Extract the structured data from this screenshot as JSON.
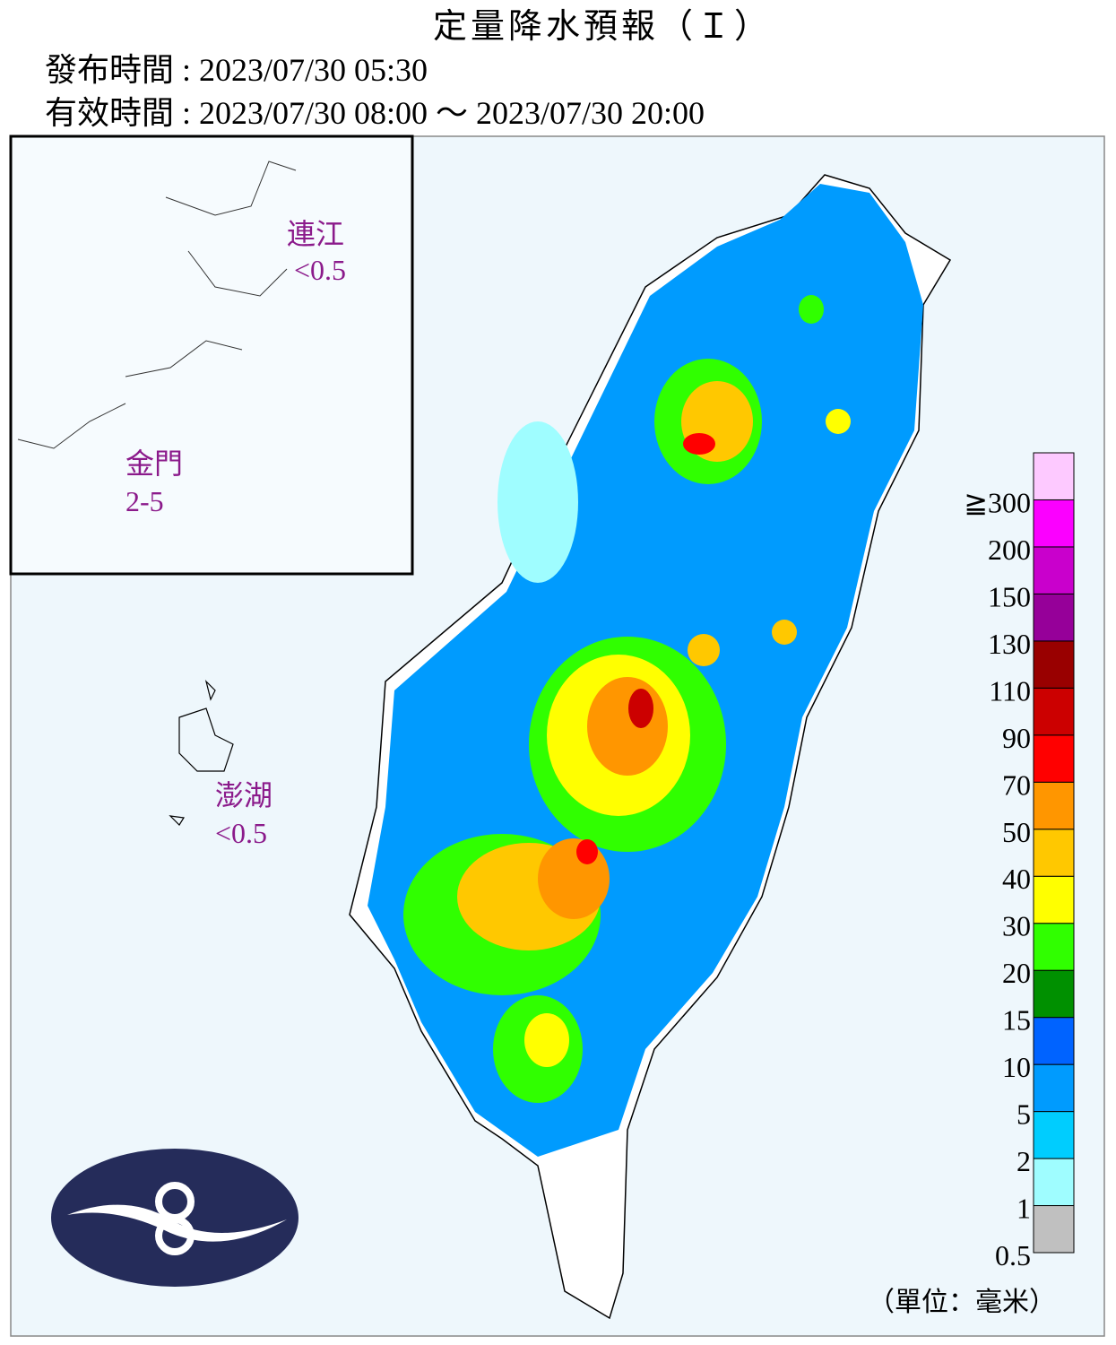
{
  "header": {
    "title": "定量降水預報（Ｉ）",
    "issued": "發布時間 : 2023/07/30 05:30",
    "valid": "有效時間 : 2023/07/30 08:00 ～ 2023/07/30 20:00"
  },
  "islands": [
    {
      "name": "連江",
      "value": "<0.5"
    },
    {
      "name": "金門",
      "value": "2-5"
    },
    {
      "name": "澎湖",
      "value": "<0.5"
    }
  ],
  "legend": {
    "unit": "（單位：毫米）",
    "levels": [
      {
        "label": "0.5",
        "color": "#c0c0c0"
      },
      {
        "label": "1",
        "color": "#9ffdff"
      },
      {
        "label": "2",
        "color": "#00cdfe"
      },
      {
        "label": "5",
        "color": "#009bfe"
      },
      {
        "label": "10",
        "color": "#0063ff"
      },
      {
        "label": "15",
        "color": "#009000"
      },
      {
        "label": "20",
        "color": "#30ff00"
      },
      {
        "label": "30",
        "color": "#ffff00"
      },
      {
        "label": "40",
        "color": "#ffc800"
      },
      {
        "label": "50",
        "color": "#ff9600"
      },
      {
        "label": "70",
        "color": "#ff0000"
      },
      {
        "label": "90",
        "color": "#cc0000"
      },
      {
        "label": "110",
        "color": "#990000"
      },
      {
        "label": "130",
        "color": "#960099"
      },
      {
        "label": "150",
        "color": "#c900cc"
      },
      {
        "label": "200",
        "color": "#fb00ff"
      },
      {
        "label": "≧300",
        "color": "#fdc9ff"
      }
    ]
  }
}
